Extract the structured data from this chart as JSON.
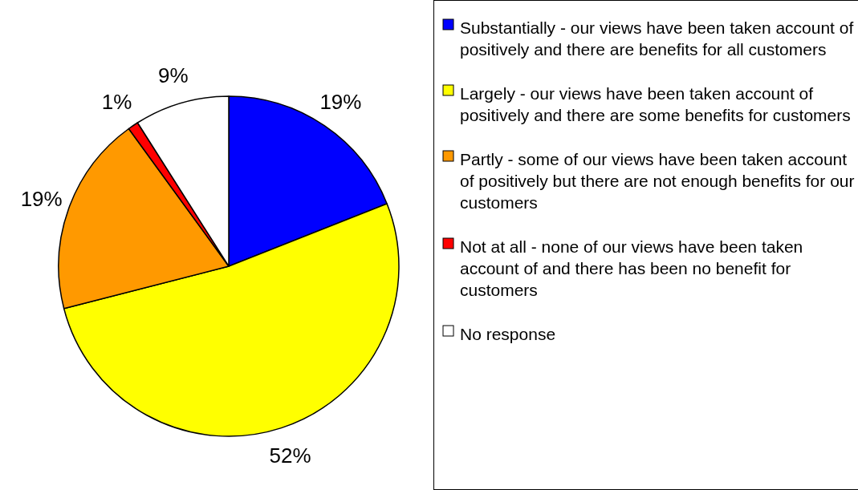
{
  "chart_data": {
    "type": "pie",
    "categories": [
      "Substantially - our views have been taken account of positively and there are benefits for all customers",
      "Largely - our views have been taken account of positively and there are some benefits for customers",
      "Partly - some of our views have been taken account of positively but there are not enough benefits for our customers",
      "Not at all - none of our views have been taken account of and there has been no benefit for customers",
      "No response"
    ],
    "values": [
      19,
      52,
      19,
      1,
      9
    ],
    "colors": [
      "#0000ff",
      "#ffff00",
      "#ff9900",
      "#ff0000",
      "#ffffff"
    ],
    "value_labels": [
      "19%",
      "52%",
      "19%",
      "1%",
      "9%"
    ],
    "legend": "right"
  }
}
